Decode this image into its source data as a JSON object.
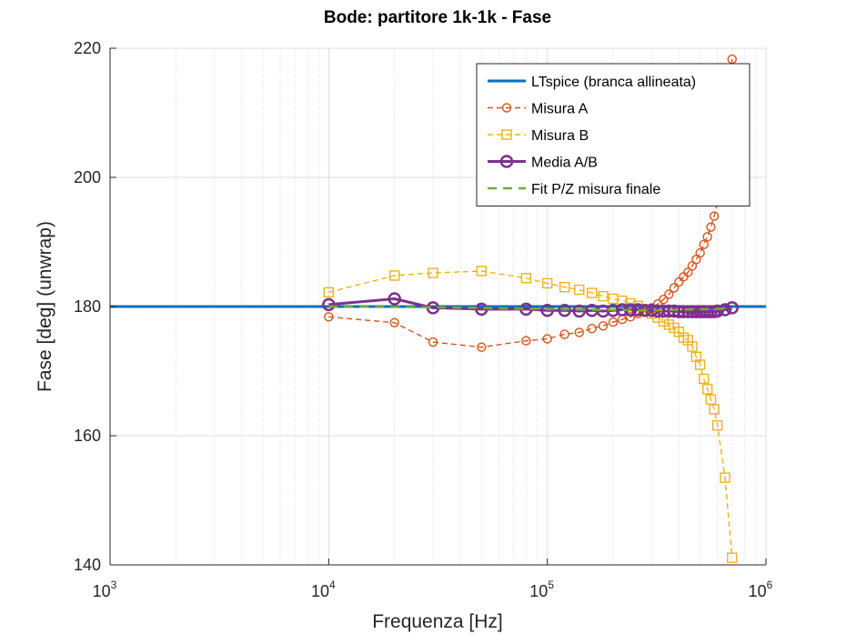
{
  "chart_data": {
    "type": "line",
    "title": "Bode: partitore 1k-1k - Fase",
    "xlabel": "Frequenza [Hz]",
    "ylabel": "Fase [deg] (unwrap)",
    "xscale": "log",
    "xlim": [
      1000,
      1000000
    ],
    "ylim": [
      140,
      220
    ],
    "x_ticks": [
      {
        "base": "10",
        "exp": "3",
        "value": 1000
      },
      {
        "base": "10",
        "exp": "4",
        "value": 10000
      },
      {
        "base": "10",
        "exp": "5",
        "value": 100000
      },
      {
        "base": "10",
        "exp": "6",
        "value": 1000000
      }
    ],
    "y_ticks": [
      140,
      160,
      180,
      200,
      220
    ],
    "grid": true,
    "legend_position": "top-right",
    "series": [
      {
        "name": "LTspice (branca allineata)",
        "color": "#0072BD",
        "style": "solid",
        "marker": "none",
        "x": [
          1000,
          1000000
        ],
        "y": [
          180,
          180
        ]
      },
      {
        "name": "Misura A",
        "color": "#D95319",
        "style": "dashed",
        "marker": "circle",
        "x": [
          10000,
          20000,
          30000,
          50000,
          80000,
          100000,
          120000,
          140000,
          160000,
          180000,
          200000,
          220000,
          240000,
          260000,
          280000,
          300000,
          320000,
          340000,
          360000,
          380000,
          400000,
          420000,
          440000,
          460000,
          480000,
          500000,
          520000,
          540000,
          560000,
          580000,
          600000,
          620000,
          650000,
          700000
        ],
        "y": [
          178.4,
          177.5,
          174.5,
          173.7,
          174.7,
          175.0,
          175.7,
          176.0,
          176.6,
          177.0,
          177.6,
          178.0,
          178.4,
          178.9,
          179.3,
          179.8,
          180.4,
          181.1,
          181.9,
          182.9,
          183.8,
          184.6,
          185.3,
          186.3,
          187.3,
          188.3,
          189.6,
          190.8,
          192.3,
          194.0,
          196.2,
          198.7,
          203.0,
          218.3
        ]
      },
      {
        "name": "Misura B",
        "color": "#EDB120",
        "style": "dashed",
        "marker": "square",
        "x": [
          10000,
          20000,
          30000,
          50000,
          80000,
          100000,
          120000,
          140000,
          160000,
          180000,
          200000,
          220000,
          240000,
          260000,
          280000,
          300000,
          320000,
          340000,
          360000,
          380000,
          400000,
          420000,
          440000,
          460000,
          480000,
          500000,
          520000,
          540000,
          560000,
          580000,
          600000,
          650000,
          700000
        ],
        "y": [
          182.2,
          184.8,
          185.2,
          185.5,
          184.4,
          183.6,
          183.0,
          182.6,
          182.1,
          181.6,
          181.2,
          180.9,
          180.5,
          180.1,
          179.5,
          178.9,
          178.3,
          177.7,
          177.2,
          176.7,
          176.1,
          175.2,
          174.8,
          173.8,
          172.2,
          171.0,
          168.8,
          167.2,
          165.6,
          164.1,
          161.6,
          153.5,
          141.1
        ]
      },
      {
        "name": "Media A/B",
        "color": "#7E2F8E",
        "style": "solid",
        "marker": "circle",
        "x": [
          10000,
          20000,
          30000,
          50000,
          80000,
          100000,
          120000,
          140000,
          160000,
          180000,
          200000,
          220000,
          240000,
          260000,
          280000,
          300000,
          320000,
          340000,
          360000,
          380000,
          400000,
          420000,
          440000,
          460000,
          480000,
          500000,
          520000,
          540000,
          560000,
          580000,
          600000,
          650000,
          700000
        ],
        "y": [
          180.3,
          181.2,
          179.8,
          179.6,
          179.6,
          179.4,
          179.4,
          179.3,
          179.4,
          179.3,
          179.4,
          179.5,
          179.5,
          179.5,
          179.4,
          179.4,
          179.3,
          179.3,
          179.3,
          179.3,
          179.2,
          179.2,
          179.2,
          179.2,
          179.2,
          179.2,
          179.2,
          179.2,
          179.2,
          179.2,
          179.3,
          179.5,
          179.8
        ]
      },
      {
        "name": "Fit P/Z misura finale",
        "color": "#77AC30",
        "style": "dashed",
        "marker": "none",
        "x": [
          10000,
          30000,
          100000,
          300000,
          700000
        ],
        "y": [
          180,
          179.9,
          179.6,
          179.4,
          179.7
        ]
      }
    ]
  }
}
